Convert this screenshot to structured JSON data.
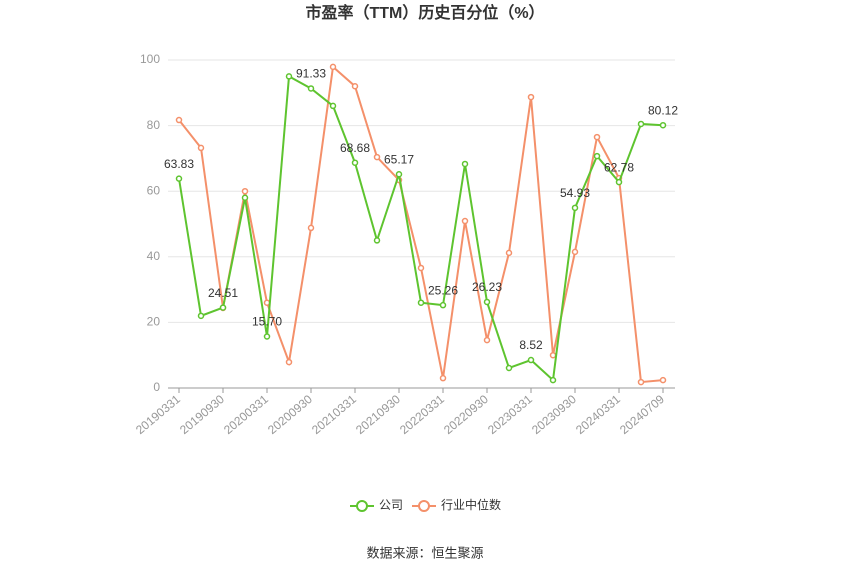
{
  "chart_data": {
    "type": "line",
    "title": "市盈率（TTM）历史百分位（%）",
    "categories": [
      "20190331",
      null,
      "20190930",
      null,
      "20200331",
      null,
      "20200930",
      null,
      "20210331",
      null,
      "20210930",
      null,
      "20220331",
      null,
      "20220930",
      null,
      "20230331",
      null,
      "20230930",
      null,
      "20240331",
      null,
      "20240709"
    ],
    "series": [
      {
        "name": "公司",
        "color": "#5ec42f",
        "values": [
          63.83,
          22,
          24.51,
          58,
          15.7,
          95,
          91.33,
          86,
          68.68,
          45,
          65.17,
          26,
          25.26,
          68.3,
          26.23,
          6.1,
          8.52,
          2.4,
          54.93,
          70.7,
          62.78,
          80.5,
          80.12
        ],
        "value_labels": [
          "63.83",
          null,
          "24.51",
          null,
          "15.70",
          null,
          "91.33",
          null,
          "68.68",
          null,
          "65.17",
          null,
          "25.26",
          null,
          "26.23",
          null,
          "8.52",
          null,
          "54.93",
          null,
          "62.78",
          null,
          "80.12"
        ]
      },
      {
        "name": "行业中位数",
        "color": "#f4906a",
        "values": [
          81.7,
          73.2,
          24.4,
          60,
          26,
          7.9,
          48.8,
          97.9,
          92,
          70.4,
          63.4,
          36.6,
          3,
          50.9,
          14.6,
          41.2,
          88.7,
          10,
          41.5,
          76.5,
          64,
          1.8,
          2.4
        ]
      }
    ],
    "ylim": [
      0,
      100
    ],
    "yticks": [
      0,
      20,
      40,
      60,
      80,
      100
    ],
    "grid": true,
    "legend": "bottom",
    "source": "数据来源：恒生聚源"
  }
}
